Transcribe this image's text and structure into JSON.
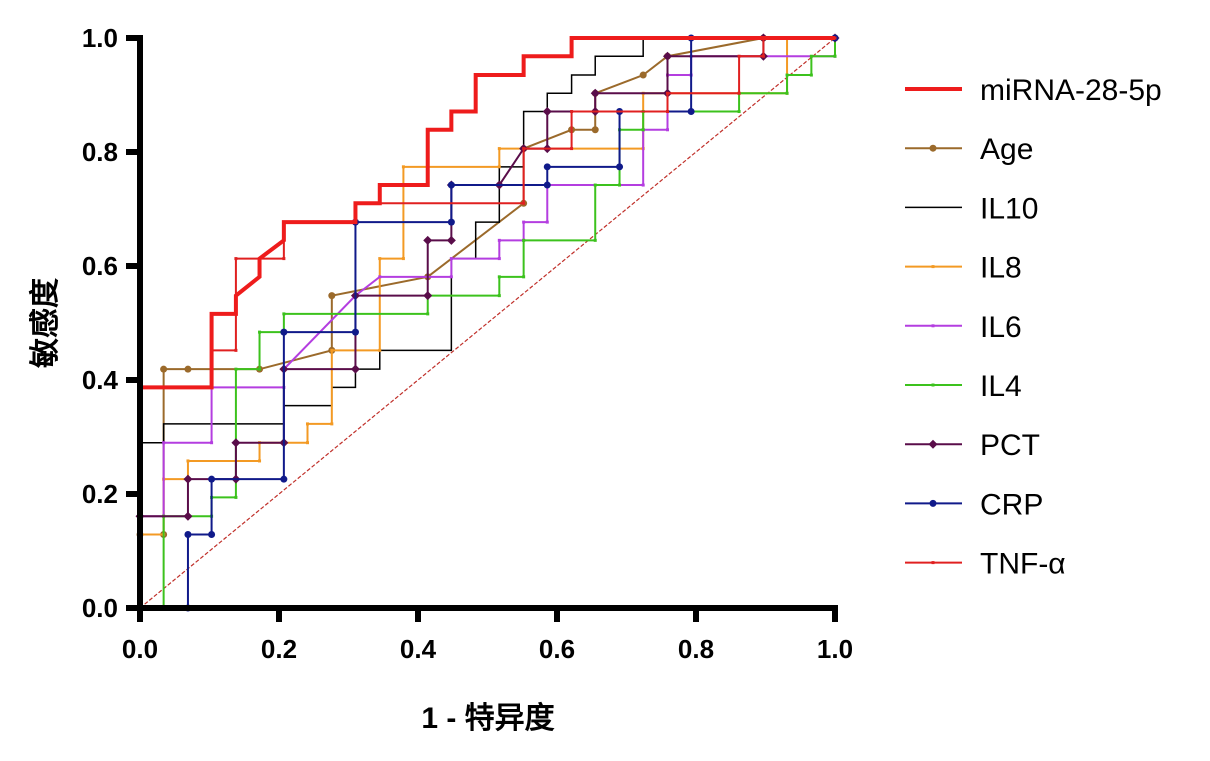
{
  "chart_data": {
    "type": "line",
    "title": "",
    "xlabel": "1 - 特异度",
    "ylabel": "敏感度",
    "xlim": [
      0,
      1
    ],
    "ylim": [
      0,
      1
    ],
    "xticks": [
      "0.0",
      "0.2",
      "0.4",
      "0.6",
      "0.8",
      "1.0"
    ],
    "yticks": [
      "0.0",
      "0.2",
      "0.4",
      "0.6",
      "0.8",
      "1.0"
    ],
    "legend_position": "right",
    "grid": false,
    "reference_line": {
      "x": [
        0,
        1
      ],
      "y": [
        0,
        1
      ],
      "color": "#c0302a"
    },
    "series": [
      {
        "name": "miRNA-28-5p",
        "color": "#ee1c1c",
        "marker": "none",
        "width": 4,
        "x": [
          0,
          0,
          0.103,
          0.103,
          0.138,
          0.138,
          0.172,
          0.172,
          0.207,
          0.207,
          0.31,
          0.31,
          0.345,
          0.345,
          0.414,
          0.414,
          0.448,
          0.448,
          0.483,
          0.483,
          0.552,
          0.552,
          0.621,
          0.621,
          1
        ],
        "y": [
          0,
          0.387,
          0.387,
          0.516,
          0.516,
          0.548,
          0.581,
          0.613,
          0.645,
          0.677,
          0.677,
          0.71,
          0.71,
          0.742,
          0.742,
          0.839,
          0.839,
          0.871,
          0.871,
          0.935,
          0.935,
          0.968,
          0.968,
          1,
          1
        ]
      },
      {
        "name": "Age",
        "color": "#9b6a2b",
        "marker": "circle",
        "width": 2,
        "x": [
          0,
          0,
          0.034,
          0.034,
          0.069,
          0.172,
          0.276,
          0.276,
          0.414,
          0.552,
          0.552,
          0.621,
          0.655,
          0.655,
          0.724,
          0.759,
          0.897,
          1
        ],
        "y": [
          0,
          0.129,
          0.129,
          0.419,
          0.419,
          0.419,
          0.452,
          0.548,
          0.581,
          0.71,
          0.806,
          0.839,
          0.839,
          0.903,
          0.935,
          0.968,
          1,
          1
        ]
      },
      {
        "name": "IL10",
        "color": "#000000",
        "marker": "none",
        "width": 1.5,
        "x": [
          0,
          0,
          0.034,
          0.034,
          0.207,
          0.207,
          0.276,
          0.276,
          0.31,
          0.31,
          0.345,
          0.345,
          0.448,
          0.448,
          0.483,
          0.483,
          0.517,
          0.517,
          0.552,
          0.552,
          0.586,
          0.586,
          0.621,
          0.621,
          0.655,
          0.655,
          0.724,
          0.724,
          1
        ],
        "y": [
          0,
          0.29,
          0.29,
          0.323,
          0.323,
          0.355,
          0.355,
          0.387,
          0.387,
          0.419,
          0.419,
          0.452,
          0.452,
          0.613,
          0.613,
          0.677,
          0.677,
          0.774,
          0.774,
          0.871,
          0.871,
          0.903,
          0.903,
          0.935,
          0.935,
          0.968,
          0.968,
          1,
          1
        ]
      },
      {
        "name": "IL8",
        "color": "#f39a24",
        "marker": "tick",
        "width": 2,
        "x": [
          0,
          0,
          0.034,
          0.034,
          0.069,
          0.069,
          0.172,
          0.172,
          0.241,
          0.241,
          0.276,
          0.276,
          0.345,
          0.345,
          0.379,
          0.379,
          0.517,
          0.517,
          0.724,
          0.724,
          0.931,
          0.931,
          1
        ],
        "y": [
          0,
          0.129,
          0.129,
          0.226,
          0.226,
          0.258,
          0.258,
          0.29,
          0.29,
          0.323,
          0.323,
          0.452,
          0.452,
          0.613,
          0.613,
          0.774,
          0.774,
          0.806,
          0.806,
          0.903,
          0.903,
          1,
          1
        ]
      },
      {
        "name": "IL6",
        "color": "#b43ee0",
        "marker": "tick",
        "width": 2,
        "x": [
          0,
          0,
          0.034,
          0.034,
          0.103,
          0.103,
          0.207,
          0.207,
          0.31,
          0.345,
          0.448,
          0.448,
          0.517,
          0.517,
          0.552,
          0.552,
          0.586,
          0.586,
          0.724,
          0.724,
          0.759,
          0.759,
          0.793,
          0.793,
          1,
          1
        ],
        "y": [
          0,
          0.161,
          0.161,
          0.29,
          0.29,
          0.387,
          0.387,
          0.419,
          0.548,
          0.581,
          0.581,
          0.613,
          0.613,
          0.645,
          0.645,
          0.677,
          0.677,
          0.742,
          0.742,
          0.839,
          0.839,
          0.935,
          0.935,
          0.968,
          0.968,
          1
        ]
      },
      {
        "name": "IL4",
        "color": "#3cc21d",
        "marker": "tick",
        "width": 2,
        "x": [
          0,
          0.034,
          0.034,
          0.103,
          0.103,
          0.138,
          0.138,
          0.172,
          0.172,
          0.207,
          0.207,
          0.414,
          0.414,
          0.517,
          0.517,
          0.552,
          0.552,
          0.655,
          0.655,
          0.69,
          0.69,
          0.724,
          0.724,
          0.862,
          0.862,
          0.931,
          0.931,
          0.966,
          0.966,
          1,
          1
        ],
        "y": [
          0,
          0,
          0.161,
          0.161,
          0.194,
          0.194,
          0.419,
          0.419,
          0.484,
          0.484,
          0.516,
          0.516,
          0.548,
          0.548,
          0.581,
          0.581,
          0.645,
          0.645,
          0.742,
          0.742,
          0.839,
          0.839,
          0.871,
          0.871,
          0.903,
          0.903,
          0.935,
          0.935,
          0.968,
          0.968,
          1
        ]
      },
      {
        "name": "PCT",
        "color": "#5a0d4a",
        "marker": "diamond",
        "width": 2,
        "x": [
          0,
          0,
          0.069,
          0.069,
          0.138,
          0.138,
          0.207,
          0.207,
          0.31,
          0.31,
          0.414,
          0.414,
          0.448,
          0.448,
          0.517,
          0.552,
          0.586,
          0.586,
          0.655,
          0.655,
          0.759,
          0.759,
          0.897,
          0.897,
          1
        ],
        "y": [
          0,
          0.161,
          0.161,
          0.226,
          0.226,
          0.29,
          0.29,
          0.419,
          0.419,
          0.548,
          0.548,
          0.645,
          0.645,
          0.742,
          0.742,
          0.806,
          0.806,
          0.871,
          0.871,
          0.903,
          0.903,
          0.968,
          0.968,
          1,
          1
        ]
      },
      {
        "name": "CRP",
        "color": "#101a8a",
        "marker": "circle",
        "width": 2,
        "x": [
          0,
          0.069,
          0.069,
          0.103,
          0.103,
          0.207,
          0.207,
          0.31,
          0.31,
          0.448,
          0.448,
          0.586,
          0.586,
          0.69,
          0.69,
          0.793,
          0.793,
          1
        ],
        "y": [
          0,
          0,
          0.129,
          0.129,
          0.226,
          0.226,
          0.484,
          0.484,
          0.677,
          0.677,
          0.742,
          0.742,
          0.774,
          0.774,
          0.871,
          0.871,
          1,
          1
        ]
      },
      {
        "name": "TNF-α",
        "color": "#e02020",
        "marker": "tick",
        "width": 2,
        "x": [
          0,
          0,
          0.103,
          0.103,
          0.138,
          0.138,
          0.207,
          0.207,
          0.31,
          0.31,
          0.552,
          0.552,
          0.621,
          0.621,
          0.759,
          0.759,
          0.862,
          0.862,
          0.897,
          0.897,
          1
        ],
        "y": [
          0,
          0.387,
          0.387,
          0.452,
          0.452,
          0.613,
          0.613,
          0.677,
          0.677,
          0.71,
          0.71,
          0.806,
          0.806,
          0.871,
          0.871,
          0.903,
          0.903,
          0.968,
          0.968,
          1,
          1
        ]
      }
    ]
  }
}
